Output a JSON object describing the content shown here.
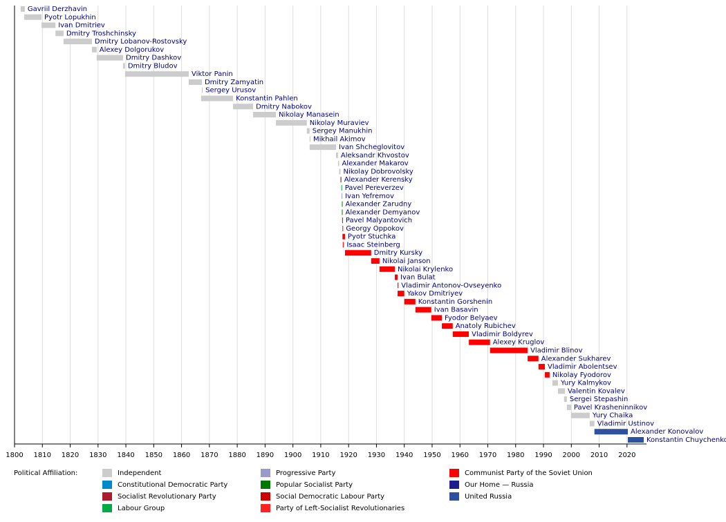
{
  "chart_data": {
    "type": "timeline",
    "xlim": [
      1800,
      2027
    ],
    "xticks": [
      1800,
      1810,
      1820,
      1830,
      1840,
      1850,
      1860,
      1870,
      1880,
      1890,
      1900,
      1910,
      1920,
      1930,
      1940,
      1950,
      1960,
      1970,
      1980,
      1990,
      2000,
      2010,
      2020
    ],
    "grid": true,
    "legend_title": "Political Affiliation:",
    "legend": [
      {
        "name": "Independent",
        "color": "#cccccc"
      },
      {
        "name": "Constitutional Democratic Party",
        "color": "#0088cc"
      },
      {
        "name": "Socialist Revolutionary Party",
        "color": "#aa1c2c"
      },
      {
        "name": "Labour Group",
        "color": "#00aa44"
      },
      {
        "name": "Progressive Party",
        "color": "#9999cc"
      },
      {
        "name": "Popular Socialist Party",
        "color": "#007700"
      },
      {
        "name": "Social Democratic Labour Party",
        "color": "#cc0000"
      },
      {
        "name": "Party of Left-Socialist Revolutionaries",
        "color": "#ff2222"
      },
      {
        "name": "Communist Party of the Soviet Union",
        "color": "#ff0000"
      },
      {
        "name": "Our Home — Russia",
        "color": "#1e1e8a"
      },
      {
        "name": "United Russia",
        "color": "#2f4f9f"
      }
    ],
    "rows": [
      {
        "name": "Gavriil Derzhavin",
        "start": 1802.2,
        "end": 1803.7,
        "color": "#cccccc"
      },
      {
        "name": "Pyotr Lopukhin",
        "start": 1803.5,
        "end": 1809.7,
        "color": "#cccccc"
      },
      {
        "name": "Ivan Dmitriev",
        "start": 1809.7,
        "end": 1814.7,
        "color": "#cccccc"
      },
      {
        "name": "Dmitry Troshchinsky",
        "start": 1814.7,
        "end": 1817.6,
        "color": "#cccccc"
      },
      {
        "name": "Dmitry Lobanov-Rostovsky",
        "start": 1817.6,
        "end": 1827.8,
        "color": "#cccccc"
      },
      {
        "name": "Alexey Dolgorukov",
        "start": 1827.8,
        "end": 1829.5,
        "color": "#cccccc"
      },
      {
        "name": "Dmitry Dashkov",
        "start": 1829.5,
        "end": 1839,
        "color": "#cccccc"
      },
      {
        "name": "Dmitry Bludov",
        "start": 1839,
        "end": 1839.7,
        "color": "#cccccc"
      },
      {
        "name": "Viktor Panin",
        "start": 1839.7,
        "end": 1862.6,
        "color": "#cccccc"
      },
      {
        "name": "Dmitry Zamyatin",
        "start": 1862.6,
        "end": 1867.3,
        "color": "#cccccc"
      },
      {
        "name": "Sergey Urusov",
        "start": 1867.3,
        "end": 1867.6,
        "color": "#cccccc"
      },
      {
        "name": "Konstantin Pahlen",
        "start": 1867,
        "end": 1878.5,
        "color": "#cccccc"
      },
      {
        "name": "Dmitry Nabokov",
        "start": 1878.5,
        "end": 1885.7,
        "color": "#cccccc"
      },
      {
        "name": "Nikolay Manasein",
        "start": 1885.7,
        "end": 1893.9,
        "color": "#cccccc"
      },
      {
        "name": "Nikolay Muraviev",
        "start": 1893.9,
        "end": 1905,
        "color": "#cccccc"
      },
      {
        "name": "Sergey Manukhin",
        "start": 1905,
        "end": 1906,
        "color": "#cccccc"
      },
      {
        "name": "Mikhail Akimov",
        "start": 1906,
        "end": 1906.3,
        "color": "#cccccc"
      },
      {
        "name": "Ivan Shcheglovitov",
        "start": 1906,
        "end": 1915.5,
        "color": "#cccccc"
      },
      {
        "name": "Aleksandr Khvostov",
        "start": 1915.5,
        "end": 1916.2,
        "color": "#cccccc"
      },
      {
        "name": "Alexander Makarov",
        "start": 1916.2,
        "end": 1916.6,
        "color": "#cccccc"
      },
      {
        "name": "Nikolay Dobrovolsky",
        "start": 1916.6,
        "end": 1917.1,
        "color": "#cccccc"
      },
      {
        "name": "Alexander Kerensky",
        "start": 1917.1,
        "end": 1917.4,
        "color": "#aa1c2c"
      },
      {
        "name": "Pavel Pereverzev",
        "start": 1917.4,
        "end": 1917.6,
        "color": "#00aa44"
      },
      {
        "name": "Ivan Yefremov",
        "start": 1917.5,
        "end": 1917.6,
        "color": "#9999cc"
      },
      {
        "name": "Alexander Zarudny",
        "start": 1917.6,
        "end": 1917.7,
        "color": "#007700"
      },
      {
        "name": "Alexander Demyanov",
        "start": 1917.6,
        "end": 1917.8,
        "color": "#007700"
      },
      {
        "name": "Pavel Malyantovich",
        "start": 1917.7,
        "end": 1917.85,
        "color": "#cc0000"
      },
      {
        "name": "Georgy Oppokov",
        "start": 1917.8,
        "end": 1917.9,
        "color": "#ff0000"
      },
      {
        "name": "Pyotr Stuchka",
        "start": 1917.8,
        "end": 1918.7,
        "color": "#ff0000"
      },
      {
        "name": "Isaac Steinberg",
        "start": 1917.9,
        "end": 1918.3,
        "color": "#ff2222"
      },
      {
        "name": "Dmitry Kursky",
        "start": 1918.7,
        "end": 1928.1,
        "color": "#ff0000"
      },
      {
        "name": "Nikolai Janson",
        "start": 1928.1,
        "end": 1931.1,
        "color": "#ff0000"
      },
      {
        "name": "Nikolai Krylenko",
        "start": 1931.1,
        "end": 1936.6,
        "color": "#ff0000"
      },
      {
        "name": "Ivan Bulat",
        "start": 1936.6,
        "end": 1937.6,
        "color": "#ff0000"
      },
      {
        "name": "Vladimir Antonov-Ovseyenko",
        "start": 1937.6,
        "end": 1937.9,
        "color": "#ff0000"
      },
      {
        "name": "Yakov Dmitriyev",
        "start": 1937.6,
        "end": 1940,
        "color": "#ff0000"
      },
      {
        "name": "Konstantin Gorshenin",
        "start": 1940,
        "end": 1944,
        "color": "#ff0000"
      },
      {
        "name": "Ivan Basavin",
        "start": 1944,
        "end": 1949.7,
        "color": "#ff0000"
      },
      {
        "name": "Fyodor Belyaev",
        "start": 1949.7,
        "end": 1953.5,
        "color": "#ff0000"
      },
      {
        "name": "Anatoly Rubichev",
        "start": 1953.5,
        "end": 1957.4,
        "color": "#ff0000"
      },
      {
        "name": "Vladimir Boldyrev",
        "start": 1957.4,
        "end": 1963.2,
        "color": "#ff0000"
      },
      {
        "name": "Alexey Kruglov",
        "start": 1963.2,
        "end": 1970.8,
        "color": "#ff0000"
      },
      {
        "name": "Vladimir Blinov",
        "start": 1970.8,
        "end": 1984.3,
        "color": "#ff0000"
      },
      {
        "name": "Alexander Sukharev",
        "start": 1984.3,
        "end": 1988.2,
        "color": "#ff0000"
      },
      {
        "name": "Vladimir Abolentsev",
        "start": 1988.2,
        "end": 1990.5,
        "color": "#ff0000"
      },
      {
        "name": "Nikolay Fyodorov",
        "start": 1990.5,
        "end": 1992.2,
        "color": "#ff0000"
      },
      {
        "name": "Yury Kalmykov",
        "start": 1993.2,
        "end": 1995.2,
        "color": "#cccccc"
      },
      {
        "name": "Valentin Kovalev",
        "start": 1995.2,
        "end": 1997.7,
        "color": "#cccccc"
      },
      {
        "name": "Sergei Stepashin",
        "start": 1997.4,
        "end": 1998.4,
        "color": "#cccccc"
      },
      {
        "name": "Pavel Krasheninnikov",
        "start": 1998.4,
        "end": 1999.9,
        "color": "#cccccc"
      },
      {
        "name": "Yury Chaika",
        "start": 1999.9,
        "end": 2006.6,
        "color": "#cccccc"
      },
      {
        "name": "Vladimir Ustinov",
        "start": 2006.6,
        "end": 2008.3,
        "color": "#cccccc"
      },
      {
        "name": "Alexander Konovalov",
        "start": 2008.3,
        "end": 2020.3,
        "color": "#2f4f9f"
      },
      {
        "name": "Konstantin Chuychenko",
        "start": 2020.3,
        "end": 2026,
        "color": "#2f4f9f"
      }
    ]
  }
}
